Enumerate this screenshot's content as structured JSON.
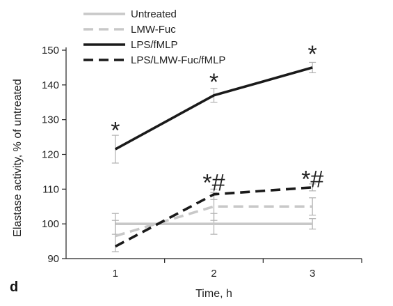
{
  "chart_data": {
    "type": "line",
    "panel_label": "d",
    "xlabel": "Time, h",
    "ylabel": "Elastase activity, % of untreated",
    "x": [
      1,
      2,
      3
    ],
    "xticks": [
      "1",
      "2",
      "3"
    ],
    "xlim": [
      0.5,
      3.5
    ],
    "ylim": [
      90,
      150
    ],
    "yticks": [
      90,
      100,
      110,
      120,
      130,
      140,
      150
    ],
    "series": [
      {
        "name": "Untreated",
        "values": [
          100,
          100,
          100
        ],
        "errors": [
          3,
          3,
          1.5
        ],
        "color": "#c8c8c8",
        "dash": "solid"
      },
      {
        "name": "LMW-Fuc",
        "values": [
          96.5,
          105,
          105
        ],
        "errors": [
          4.5,
          4,
          2.5
        ],
        "color": "#c8c8c8",
        "dash": "dashed"
      },
      {
        "name": "LPS/fMLP",
        "values": [
          121.5,
          137,
          145
        ],
        "errors": [
          4,
          2,
          1.5
        ],
        "color": "#1a1a1a",
        "dash": "solid"
      },
      {
        "name": "LPS/LMW-Fuc/fMLP",
        "values": [
          93.5,
          108.5,
          110.5
        ],
        "errors": [
          0,
          1.5,
          1
        ],
        "color": "#1a1a1a",
        "dash": "dashed"
      }
    ],
    "annotations": [
      {
        "x": 1,
        "y": 127,
        "text": "*"
      },
      {
        "x": 2,
        "y": 141,
        "text": "*"
      },
      {
        "x": 3,
        "y": 149,
        "text": "*"
      },
      {
        "x": 2,
        "y": 112,
        "text": "*#"
      },
      {
        "x": 3,
        "y": 113,
        "text": "*#"
      }
    ]
  }
}
